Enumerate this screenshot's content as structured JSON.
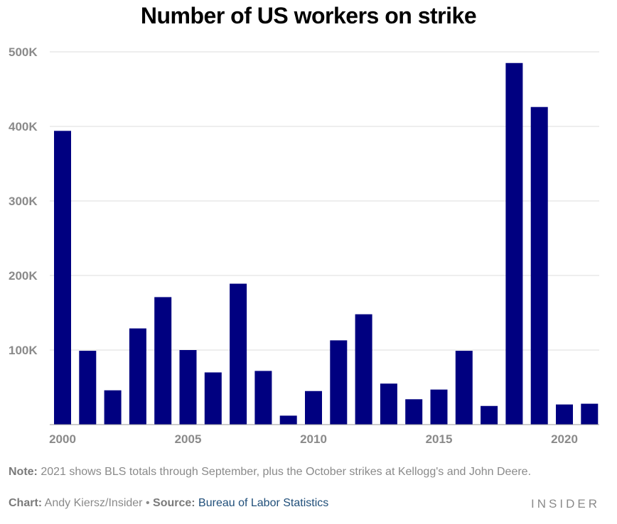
{
  "title": "Number of US workers on strike",
  "note": {
    "label": "Note:",
    "text": " 2021 shows BLS totals through September, plus the October strikes at Kellogg's and John Deere."
  },
  "credit": {
    "chart_label": "Chart:",
    "chart_author": " Andy Kiersz/Insider",
    "separator": " • ",
    "source_label": "Source:",
    "source_name": "Bureau of Labor Statistics"
  },
  "logo": "INSIDER",
  "colors": {
    "bar": "#000080",
    "grid": "#dddddd",
    "axis": "#999999"
  },
  "chart_data": {
    "type": "bar",
    "title": "Number of US workers on strike",
    "xlabel": "",
    "ylabel": "",
    "categories": [
      2000,
      2001,
      2002,
      2003,
      2004,
      2005,
      2006,
      2007,
      2008,
      2009,
      2010,
      2011,
      2012,
      2013,
      2014,
      2015,
      2016,
      2017,
      2018,
      2019,
      2020,
      2021
    ],
    "values": [
      394000,
      99000,
      46000,
      129000,
      171000,
      100000,
      70000,
      189000,
      72000,
      12000,
      45000,
      113000,
      148000,
      55000,
      34000,
      47000,
      99000,
      25000,
      485000,
      426000,
      27000,
      28000
    ],
    "ylim": [
      0,
      500000
    ],
    "yticks": [
      100000,
      200000,
      300000,
      400000,
      500000
    ],
    "ytick_labels": [
      "100K",
      "200K",
      "300K",
      "400K",
      "500K"
    ],
    "xticks": [
      2000,
      2005,
      2010,
      2015,
      2020
    ],
    "xtick_labels": [
      "2000",
      "2005",
      "2010",
      "2015",
      "2020"
    ],
    "grid": true
  }
}
